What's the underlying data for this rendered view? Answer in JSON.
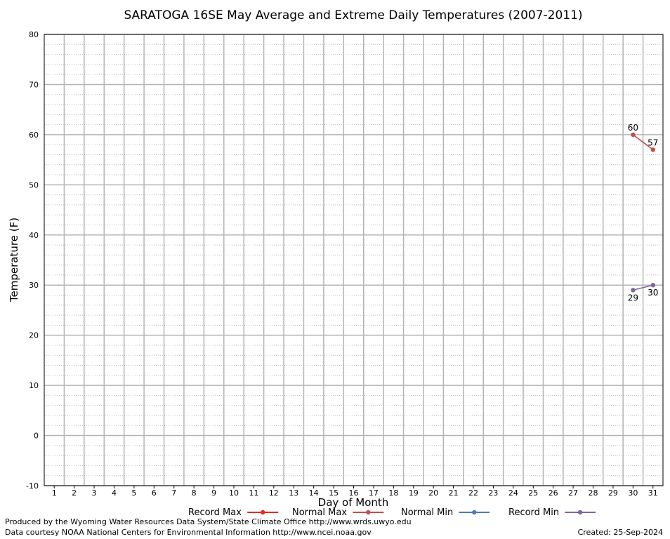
{
  "chart_data": {
    "type": "line",
    "title": "SARATOGA 16SE May Average and Extreme Daily Temperatures (2007-2011)",
    "xlabel": "Day of Month",
    "ylabel": "Temperature (F)",
    "xlim": [
      0.5,
      31.5
    ],
    "ylim": [
      -10,
      80
    ],
    "x_ticks": [
      1,
      2,
      3,
      4,
      5,
      6,
      7,
      8,
      9,
      10,
      11,
      12,
      13,
      14,
      15,
      16,
      17,
      18,
      19,
      20,
      21,
      22,
      23,
      24,
      25,
      26,
      27,
      28,
      29,
      30,
      31
    ],
    "y_ticks": [
      -10,
      0,
      10,
      20,
      30,
      40,
      50,
      60,
      70,
      80
    ],
    "grid": true,
    "legend_position": "bottom",
    "series": [
      {
        "name": "Record Max",
        "color": "#e8281e",
        "points": []
      },
      {
        "name": "Normal Max",
        "color": "#c0504d",
        "points": [
          {
            "x": 30,
            "y": 60
          },
          {
            "x": 31,
            "y": 57
          }
        ]
      },
      {
        "name": "Normal Min",
        "color": "#4a7eb0",
        "points": []
      },
      {
        "name": "Record Min",
        "color": "#8064a2",
        "points": [
          {
            "x": 30,
            "y": 29
          },
          {
            "x": 31,
            "y": 30
          }
        ]
      }
    ],
    "data_labels": [
      {
        "series": "Normal Max",
        "x": 30,
        "y": 60,
        "text": "60",
        "position": "above"
      },
      {
        "series": "Normal Max",
        "x": 31,
        "y": 57,
        "text": "57",
        "position": "above"
      },
      {
        "series": "Record Min",
        "x": 30,
        "y": 29,
        "text": "29",
        "position": "below"
      },
      {
        "series": "Record Min",
        "x": 31,
        "y": 30,
        "text": "30",
        "position": "below"
      }
    ]
  },
  "footer": {
    "credit_line_1": "Produced by the Wyoming Water Resources Data System/State Climate Office http://www.wrds.uwyo.edu",
    "credit_line_2": "Data courtesy NOAA National Centers for Environmental Information http://www.ncei.noaa.gov",
    "created": "Created:  25-Sep-2024"
  }
}
